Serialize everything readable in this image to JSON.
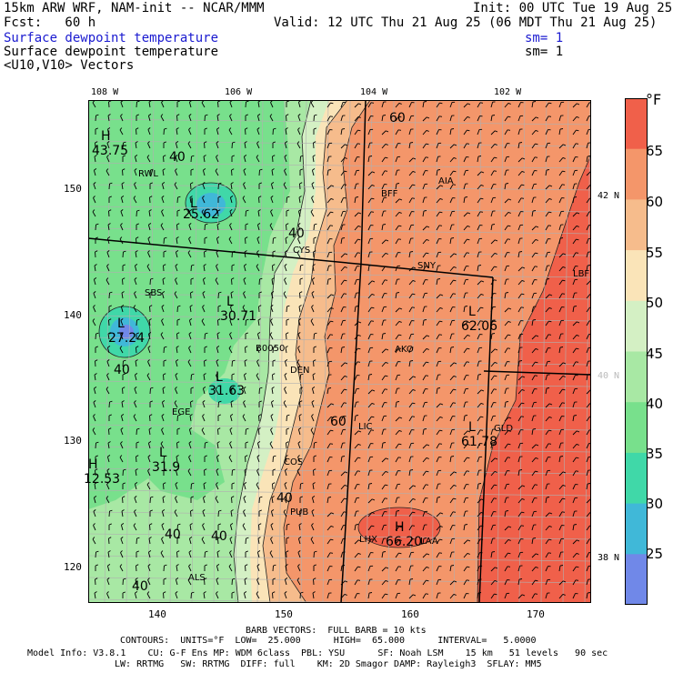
{
  "header": {
    "title": "15km ARW WRF, NAM-init -- NCAR/MMM",
    "init": "Init: 00 UTC Tue 19 Aug 25",
    "fcst": "Fcst:   60 h",
    "valid": "Valid: 12 UTC Thu 21 Aug 25 (06 MDT Thu 21 Aug 25)",
    "field1": "Surface dewpoint temperature",
    "sm1": "sm= 1",
    "field2": "Surface dewpoint temperature",
    "sm2": "sm= 1",
    "field3": "<U10,V10> Vectors"
  },
  "colorbar": {
    "unit": "°F",
    "labels": [
      "65",
      "60",
      "55",
      "50",
      "45",
      "40",
      "35",
      "30",
      "25"
    ],
    "colors": [
      "#f0604a",
      "#f4966a",
      "#f6bc8c",
      "#fae4b8",
      "#d4f0c4",
      "#a8e8a4",
      "#78e08c",
      "#40d8a8",
      "#40b8d8",
      "#7088e8"
    ]
  },
  "map": {
    "lon_labels": [
      "108 W",
      "106 W",
      "104 W",
      "102 W"
    ],
    "lat_labels": [
      "42 N",
      "40 N",
      "38 N"
    ],
    "x_ticks": [
      "140",
      "150",
      "160",
      "170"
    ],
    "y_ticks": [
      "150",
      "140",
      "130",
      "120"
    ],
    "contour_labels": [
      "60",
      "40",
      "40",
      "40",
      "40",
      "40",
      "40",
      "40",
      "60"
    ],
    "highs_lows": [
      {
        "type": "H",
        "value": "43.75"
      },
      {
        "type": "L",
        "value": "25.62"
      },
      {
        "type": "L",
        "value": "27.24"
      },
      {
        "type": "L",
        "value": "30.71"
      },
      {
        "type": "L",
        "value": "31.63"
      },
      {
        "type": "L",
        "value": "31.9"
      },
      {
        "type": "H",
        "value": "12.53"
      },
      {
        "type": "L",
        "value": "62.06"
      },
      {
        "type": "L",
        "value": "61.78"
      },
      {
        "type": "H",
        "value": "66.20"
      }
    ],
    "stations": [
      "RWL",
      "BFF",
      "AIA",
      "SNY",
      "LBF",
      "CYS",
      "SBS",
      "BOU",
      "DEN",
      "AKO",
      "EGE",
      "GLD",
      "LIC",
      "COS",
      "PUB",
      "LHX",
      "LAA",
      "ALS",
      "B0050"
    ]
  },
  "footer": {
    "barb": "BARB VECTORS:  FULL BARB = 10 kts",
    "contours": "CONTOURS:  UNITS=°F  LOW=  25.000      HIGH=  65.000      INTERVAL=   5.0000",
    "model1": "Model Info: V3.8.1    CU: G-F Ens MP: WDM 6class  PBL: YSU      SF: Noah LSM    15 km   51 levels   90 sec",
    "model2": "LW: RRTMG   SW: RRTMG  DIFF: full    KM: 2D Smagor DAMP: Rayleigh3  SFLAY: MM5"
  }
}
